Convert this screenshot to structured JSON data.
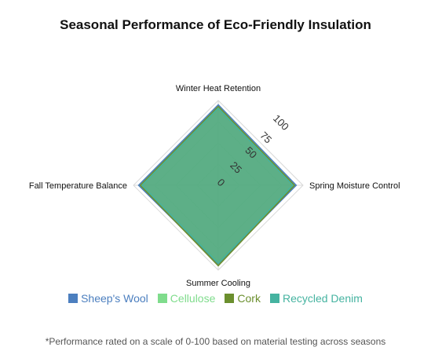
{
  "chart_data": {
    "type": "radar",
    "title": "Seasonal Performance of Eco-Friendly Insulation",
    "axes": [
      "Winter Heat Retention",
      "Spring Moisture Control",
      "Summer Cooling",
      "Fall Temperature Balance"
    ],
    "radial_range": [
      0,
      100
    ],
    "radial_ticks": [
      "0",
      "25",
      "50",
      "75",
      "100"
    ],
    "series": [
      {
        "name": "Sheep's Wool",
        "values": [
          95,
          92,
          93,
          94
        ],
        "color": "#4c7fbf"
      },
      {
        "name": "Cellulose",
        "values": [
          90,
          90,
          90,
          91
        ],
        "color": "#7fdc8c"
      },
      {
        "name": "Cork",
        "values": [
          93,
          90,
          95,
          92
        ],
        "color": "#6b8f2e"
      },
      {
        "name": "Recycled Denim",
        "values": [
          91,
          88,
          92,
          90
        ],
        "color": "#45b3a0"
      }
    ],
    "legend_position": "bottom",
    "footnote": "*Performance rated on a scale of 0-100 based on material testing across seasons"
  }
}
